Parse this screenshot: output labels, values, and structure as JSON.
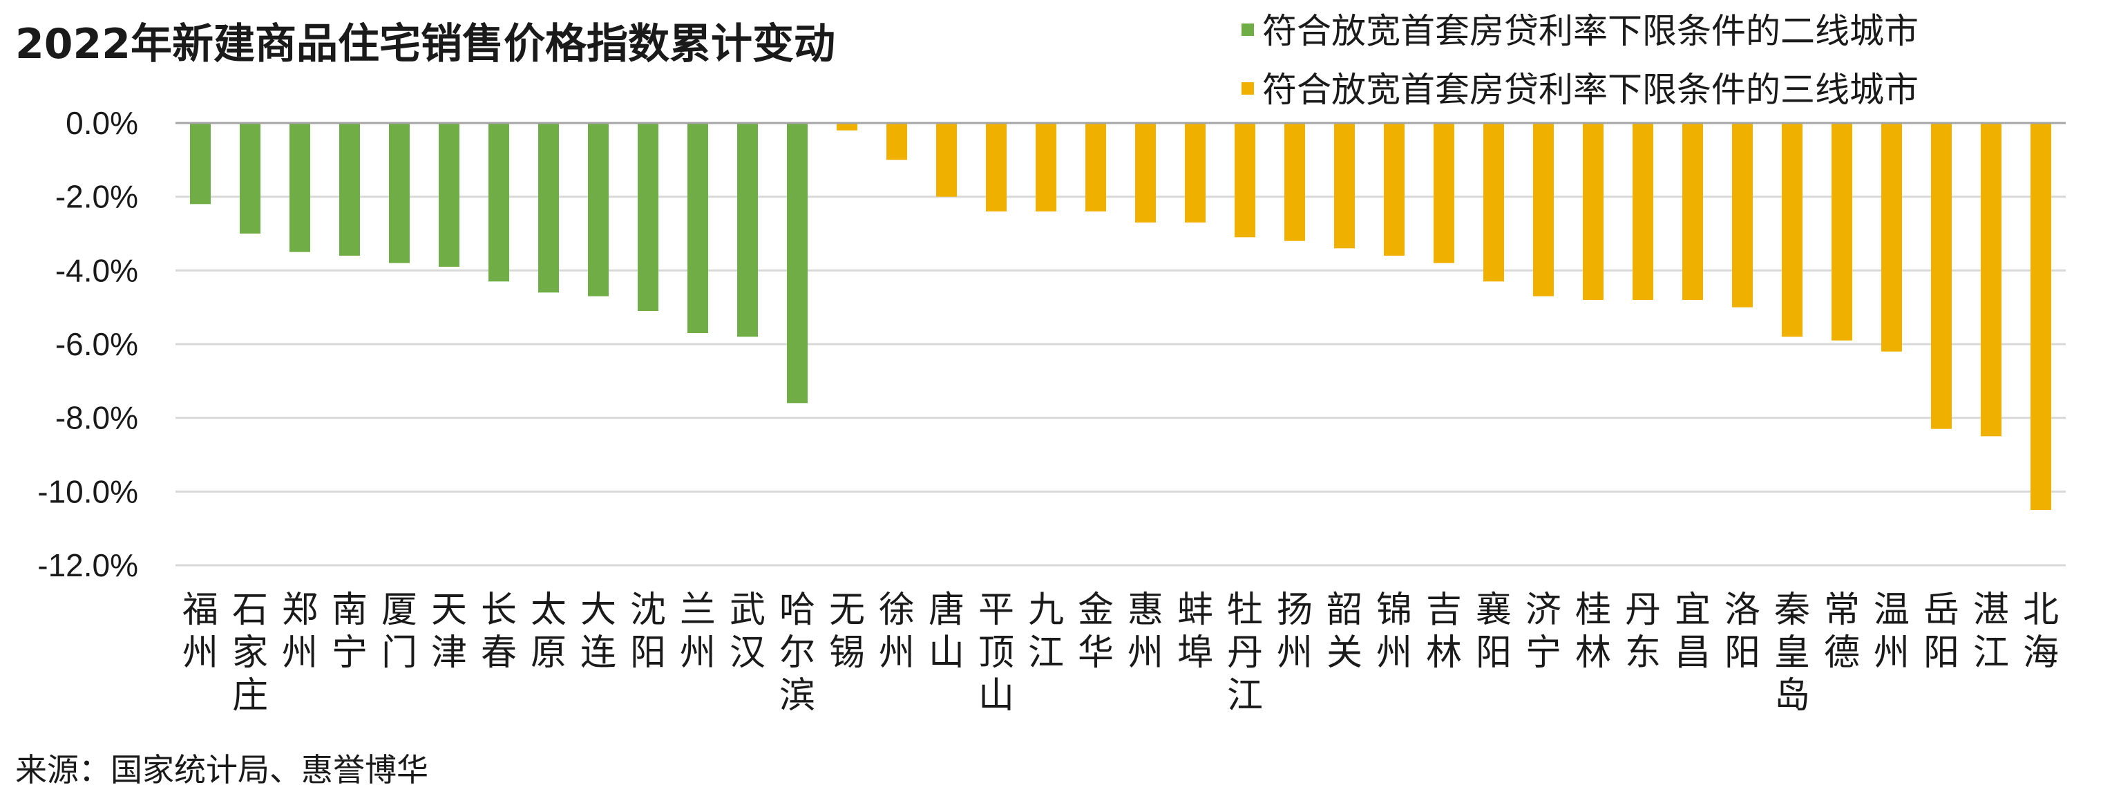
{
  "chart_data": {
    "type": "bar",
    "title": "2022年新建商品住宅销售价格指数累计变动",
    "source": "来源：国家统计局、惠誉博华",
    "ylim": [
      -12,
      0
    ],
    "yticks": [
      "0.0%",
      "-2.0%",
      "-4.0%",
      "-6.0%",
      "-8.0%",
      "-10.0%",
      "-12.0%"
    ],
    "grid": true,
    "legend_position": "top-right",
    "colors": {
      "second_tier": "#70ad47",
      "third_tier": "#f0b000",
      "gridline": "#d9d9d9",
      "axis": "#a6a6a6"
    },
    "series": [
      {
        "name": "符合放宽首套房贷利率下限条件的二线城市",
        "color": "#70ad47",
        "categories": [
          "福州",
          "石家庄",
          "郑州",
          "南宁",
          "厦门",
          "天津",
          "长春",
          "太原",
          "大连",
          "沈阳",
          "兰州",
          "武汉",
          "哈尔滨"
        ],
        "values": [
          -2.2,
          -3.0,
          -3.5,
          -3.6,
          -3.8,
          -3.9,
          -4.3,
          -4.6,
          -4.7,
          -5.1,
          -5.7,
          -5.8,
          -7.6
        ]
      },
      {
        "name": "符合放宽首套房贷利率下限条件的三线城市",
        "color": "#f0b000",
        "categories": [
          "无锡",
          "徐州",
          "唐山",
          "平顶山",
          "九江",
          "金华",
          "惠州",
          "蚌埠",
          "牡丹江",
          "扬州",
          "韶关",
          "锦州",
          "吉林",
          "襄阳",
          "济宁",
          "桂林",
          "丹东",
          "宜昌",
          "洛阳",
          "秦皇岛",
          "常德",
          "温州",
          "岳阳",
          "湛江",
          "北海"
        ],
        "values": [
          -0.2,
          -1.0,
          -2.0,
          -2.4,
          -2.4,
          -2.4,
          -2.7,
          -2.7,
          -3.1,
          -3.2,
          -3.4,
          -3.6,
          -3.8,
          -4.3,
          -4.7,
          -4.8,
          -4.8,
          -4.8,
          -5.0,
          -5.8,
          -5.9,
          -6.2,
          -8.3,
          -8.5,
          -10.5
        ]
      }
    ]
  }
}
